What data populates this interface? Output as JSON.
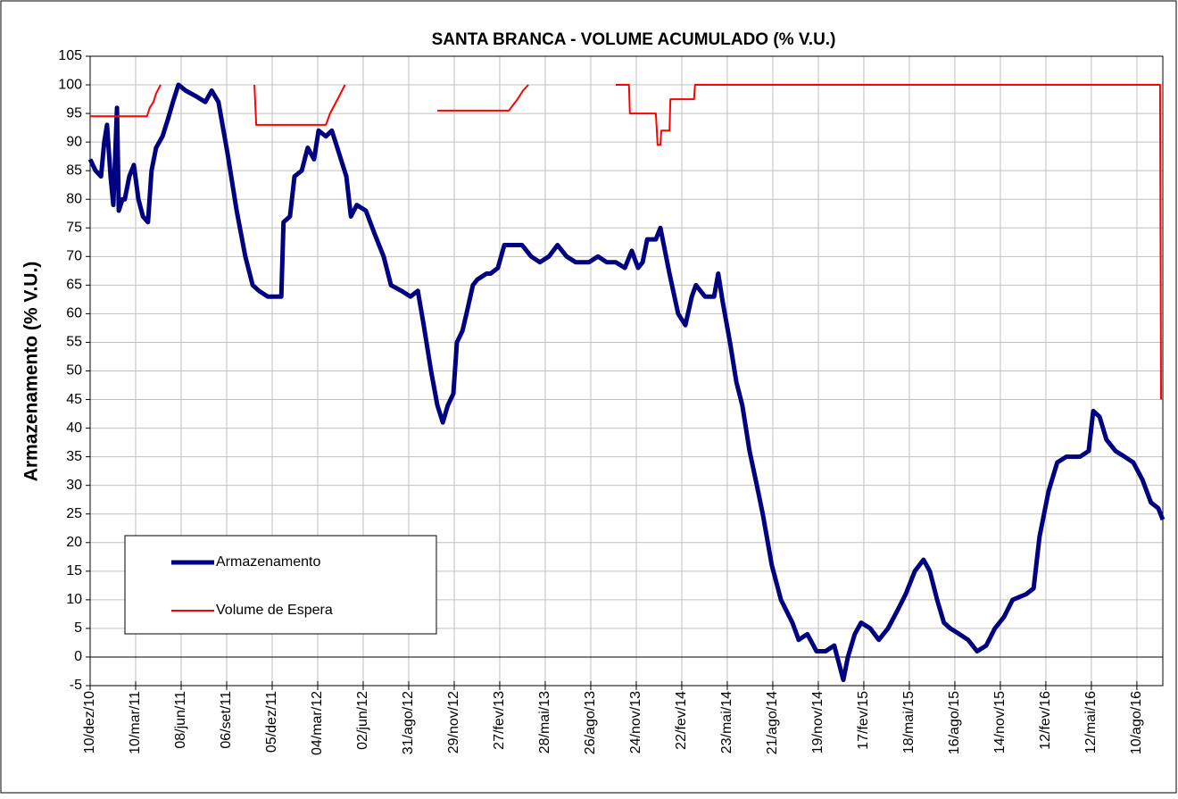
{
  "chart_data": {
    "type": "line",
    "title": "SANTA BRANCA - VOLUME ACUMULADO (% V.U.)",
    "y_label": "Armazenamento (% V.U.)",
    "xlim": [
      0,
      23.57
    ],
    "xticks": [
      {
        "value": 0,
        "label": "10/dez/10"
      },
      {
        "value": 1,
        "label": "10/mar/11"
      },
      {
        "value": 2,
        "label": "08/jun/11"
      },
      {
        "value": 3,
        "label": "06/set/11"
      },
      {
        "value": 4,
        "label": "05/dez/11"
      },
      {
        "value": 5,
        "label": "04/mar/12"
      },
      {
        "value": 6,
        "label": "02/jun/12"
      },
      {
        "value": 7,
        "label": "31/ago/12"
      },
      {
        "value": 8,
        "label": "29/nov/12"
      },
      {
        "value": 9,
        "label": "27/fev/13"
      },
      {
        "value": 10,
        "label": "28/mai/13"
      },
      {
        "value": 11,
        "label": "26/ago/13"
      },
      {
        "value": 12,
        "label": "24/nov/13"
      },
      {
        "value": 13,
        "label": "22/fev/14"
      },
      {
        "value": 14,
        "label": "23/mai/14"
      },
      {
        "value": 15,
        "label": "21/ago/14"
      },
      {
        "value": 16,
        "label": "19/nov/14"
      },
      {
        "value": 17,
        "label": "17/fev/15"
      },
      {
        "value": 18,
        "label": "18/mai/15"
      },
      {
        "value": 19,
        "label": "16/ago/15"
      },
      {
        "value": 20,
        "label": "14/nov/15"
      },
      {
        "value": 21,
        "label": "12/fev/16"
      },
      {
        "value": 22,
        "label": "12/mai/16"
      },
      {
        "value": 23,
        "label": "10/ago/16"
      }
    ],
    "ylim": [
      -5,
      105
    ],
    "yticks": [
      -5,
      0,
      5,
      10,
      15,
      20,
      25,
      30,
      35,
      40,
      45,
      50,
      55,
      60,
      65,
      70,
      75,
      80,
      85,
      90,
      95,
      100,
      105
    ],
    "grid": true,
    "legend": "lower left",
    "series": [
      {
        "name": "Armazenamento",
        "color": "#000080",
        "width": 5,
        "x": [
          0,
          0.12,
          0.24,
          0.31,
          0.37,
          0.45,
          0.51,
          0.59,
          0.63,
          0.71,
          0.76,
          0.86,
          0.96,
          1.06,
          1.16,
          1.27,
          1.35,
          1.45,
          1.59,
          1.71,
          1.82,
          1.94,
          2.1,
          2.33,
          2.53,
          2.67,
          2.82,
          3.02,
          3.22,
          3.41,
          3.57,
          3.71,
          3.9,
          4.06,
          4.2,
          4.25,
          4.39,
          4.49,
          4.65,
          4.78,
          4.92,
          5.02,
          5.18,
          5.31,
          5.47,
          5.63,
          5.73,
          5.86,
          6.06,
          6.25,
          6.45,
          6.61,
          6.84,
          7.04,
          7.2,
          7.33,
          7.49,
          7.63,
          7.75,
          7.86,
          7.98,
          8.06,
          8.18,
          8.27,
          8.41,
          8.51,
          8.71,
          8.8,
          8.96,
          9.1,
          9.29,
          9.49,
          9.69,
          9.88,
          10.08,
          10.27,
          10.47,
          10.67,
          10.96,
          11.16,
          11.35,
          11.55,
          11.75,
          11.9,
          12.04,
          12.14,
          12.24,
          12.43,
          12.53,
          12.73,
          12.92,
          13.08,
          13.22,
          13.31,
          13.51,
          13.71,
          13.8,
          13.9,
          14.06,
          14.2,
          14.33,
          14.49,
          14.65,
          14.78,
          14.98,
          15.18,
          15.43,
          15.57,
          15.76,
          15.96,
          16.16,
          16.35,
          16.55,
          16.65,
          16.8,
          16.94,
          17.14,
          17.33,
          17.53,
          17.73,
          17.92,
          18.12,
          18.31,
          18.45,
          18.61,
          18.76,
          18.9,
          19.1,
          19.29,
          19.49,
          19.69,
          19.88,
          20.08,
          20.27,
          20.57,
          20.73,
          20.86,
          21.06,
          21.25,
          21.45,
          21.75,
          21.94,
          22.04,
          22.18,
          22.33,
          22.53,
          22.73,
          22.92,
          23.12,
          23.31,
          23.47,
          23.57
        ],
        "values": [
          87,
          85,
          84,
          90,
          93,
          84,
          79,
          96,
          78,
          80,
          80,
          84,
          86,
          80,
          77,
          76,
          85,
          89,
          91,
          94,
          97,
          100,
          99,
          98,
          97,
          99,
          97,
          88,
          78,
          70,
          65,
          64,
          63,
          63,
          63,
          76,
          77,
          84,
          85,
          89,
          87,
          92,
          91,
          92,
          88,
          84,
          77,
          79,
          78,
          74,
          70,
          65,
          64,
          63,
          64,
          58,
          50,
          44,
          41,
          44,
          46,
          55,
          57,
          60,
          65,
          66,
          67,
          67,
          68,
          72,
          72,
          72,
          70,
          69,
          70,
          72,
          70,
          69,
          69,
          70,
          69,
          69,
          68,
          71,
          68,
          69,
          73,
          73,
          75,
          67,
          60,
          58,
          63,
          65,
          63,
          63,
          67,
          62,
          55,
          48,
          44,
          36,
          30,
          25,
          16,
          10,
          6,
          3,
          4,
          1,
          1,
          2,
          -4,
          0,
          4,
          6,
          5,
          3,
          5,
          8,
          11,
          15,
          17,
          15,
          10,
          6,
          5,
          4,
          3,
          1,
          2,
          5,
          7,
          10,
          11,
          12,
          21,
          29,
          34,
          35,
          35,
          36,
          43,
          42,
          38,
          36,
          35,
          34,
          31,
          27,
          26,
          24
        ]
      },
      {
        "name": "Volume de Espera",
        "color": "#ff0000",
        "width": 2,
        "x": [
          0,
          1.25,
          1.31,
          1.39,
          1.45,
          1.55,
          null,
          3.61,
          3.65,
          5.18,
          5.27,
          5.37,
          5.47,
          5.6,
          null,
          7.63,
          9.2,
          9.39,
          9.51,
          9.63,
          null,
          11.55,
          11.84,
          11.86,
          12.43,
          12.47,
          12.53,
          12.55,
          12.73,
          12.75,
          13.27,
          13.29,
          23.51,
          23.53
        ],
        "values": [
          94.5,
          94.5,
          96,
          97,
          98.5,
          100,
          null,
          100,
          93,
          93,
          95,
          96.5,
          98,
          100,
          null,
          95.5,
          95.5,
          97.5,
          99,
          100,
          null,
          100,
          100,
          95,
          95,
          89.5,
          89.5,
          92,
          92,
          97.5,
          97.5,
          100,
          100,
          45
        ]
      }
    ]
  }
}
